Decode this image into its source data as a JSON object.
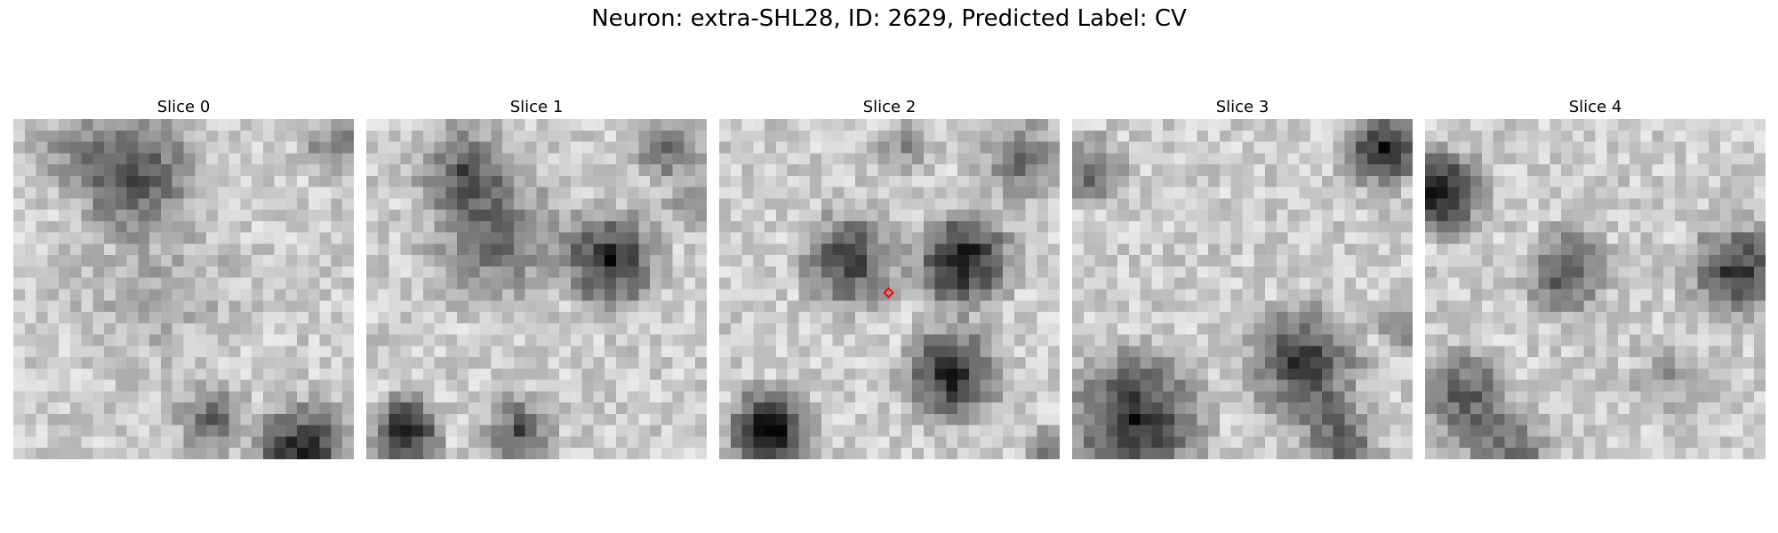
{
  "figure": {
    "title": "Neuron: extra-SHL28, ID: 2629, Predicted Label: CV"
  },
  "slices": [
    {
      "title": "Slice 0",
      "has_marker": false
    },
    {
      "title": "Slice 1",
      "has_marker": false
    },
    {
      "title": "Slice 2",
      "has_marker": true
    },
    {
      "title": "Slice 3",
      "has_marker": false
    },
    {
      "title": "Slice 4",
      "has_marker": false
    }
  ],
  "colors": {
    "colormap": "gray",
    "marker": "#ff0000"
  }
}
